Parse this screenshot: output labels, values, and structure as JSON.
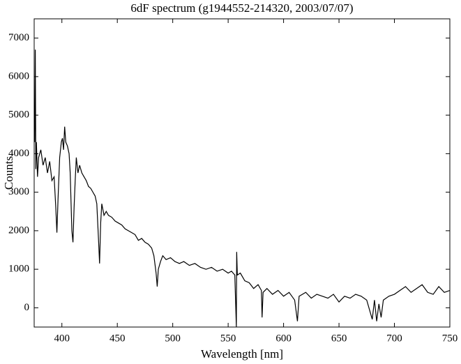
{
  "chart_data": {
    "type": "line",
    "title": "6dF spectrum (g1944552-214320, 2003/07/07)",
    "x_label": "Wavelength [nm]",
    "y_label": "Counts",
    "xlim": [
      375,
      750
    ],
    "ylim": [
      -500,
      7500
    ],
    "xticks": [
      400,
      450,
      500,
      550,
      600,
      650,
      700,
      750
    ],
    "yticks": [
      0,
      1000,
      2000,
      3000,
      4000,
      5000,
      6000,
      7000
    ],
    "grid": false,
    "series": [
      {
        "color": "#000000",
        "x": [
          375.5,
          376,
          376.5,
          377,
          378,
          379,
          381,
          383,
          385,
          387,
          389,
          391,
          393,
          394.5,
          395.5,
          396.5,
          398,
          399.5,
          400.5,
          401.5,
          402.5,
          403.5,
          405,
          406.5,
          407.5,
          409,
          410,
          411,
          412,
          413,
          414.5,
          416,
          418,
          420,
          422,
          424,
          426,
          428,
          430,
          431.5,
          433,
          434,
          435,
          436,
          438,
          440,
          442,
          445,
          448,
          451,
          454,
          457,
          460,
          463,
          466,
          469,
          472,
          475,
          478,
          481,
          483,
          485,
          486,
          487,
          489,
          491,
          494,
          498,
          502,
          506,
          510,
          515,
          520,
          525,
          530,
          535,
          540,
          545,
          550,
          553,
          556,
          557.4,
          557.7,
          558.3,
          561,
          565,
          569,
          573,
          577,
          580,
          580.6,
          581.5,
          585,
          590,
          595,
          600,
          605,
          610,
          612.5,
          614,
          620,
          625,
          630,
          635,
          640,
          645,
          650,
          655,
          660,
          665,
          670,
          675,
          680,
          682,
          684,
          686,
          688,
          690,
          695,
          700,
          705,
          710,
          715,
          720,
          725,
          730,
          735,
          740,
          745,
          750
        ],
        "values": [
          4300,
          6700,
          3600,
          4300,
          3400,
          3900,
          4100,
          3700,
          3900,
          3500,
          3800,
          3300,
          3400,
          2600,
          1950,
          2800,
          3900,
          4300,
          4400,
          4100,
          4700,
          4300,
          4200,
          4000,
          3500,
          2000,
          1700,
          2600,
          3300,
          3900,
          3500,
          3700,
          3500,
          3400,
          3300,
          3150,
          3100,
          3000,
          2900,
          2700,
          1800,
          1150,
          2200,
          2700,
          2400,
          2500,
          2400,
          2350,
          2250,
          2200,
          2150,
          2050,
          2000,
          1950,
          1900,
          1750,
          1800,
          1700,
          1650,
          1550,
          1350,
          900,
          550,
          1000,
          1200,
          1350,
          1250,
          1300,
          1200,
          1150,
          1200,
          1100,
          1150,
          1050,
          1000,
          1050,
          950,
          1000,
          900,
          950,
          850,
          -500,
          1450,
          850,
          900,
          700,
          650,
          500,
          600,
          450,
          -250,
          400,
          500,
          350,
          450,
          300,
          400,
          200,
          -350,
          300,
          400,
          250,
          350,
          300,
          250,
          350,
          150,
          300,
          250,
          350,
          300,
          200,
          -300,
          200,
          -350,
          100,
          -250,
          200,
          300,
          350,
          450,
          550,
          400,
          500,
          600,
          400,
          350,
          550,
          400,
          450
        ]
      }
    ]
  }
}
